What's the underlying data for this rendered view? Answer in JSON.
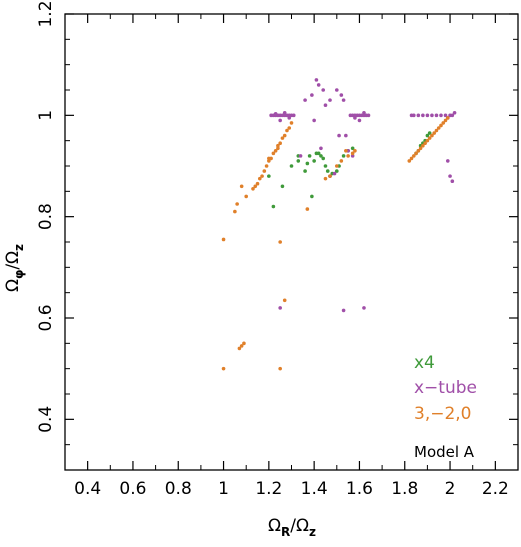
{
  "chart_data": {
    "type": "scatter",
    "xlabel": {
      "main": "Ω",
      "num_sub": "R",
      "slash": "/",
      "den_main": "Ω",
      "den_sub": "z"
    },
    "ylabel": {
      "main": "Ω",
      "num_sub": "φ",
      "slash": "/",
      "den_main": "Ω",
      "den_sub": "z"
    },
    "xlim": [
      0.3,
      2.3
    ],
    "ylim": [
      0.3,
      1.2
    ],
    "xticks": [
      0.4,
      0.6,
      0.8,
      1.0,
      1.2,
      1.4,
      1.6,
      1.8,
      2.0,
      2.2
    ],
    "xtick_labels": [
      "0.4",
      "0.6",
      "0.8",
      "1",
      "1.2",
      "1.4",
      "1.6",
      "1.8",
      "2",
      "2.2"
    ],
    "yticks": [
      0.4,
      0.6,
      0.8,
      1.0,
      1.2
    ],
    "ytick_labels": [
      "0.4",
      "0.6",
      "0.8",
      "1",
      "1.2"
    ],
    "grid": false,
    "legend_position": "bottom-right",
    "annotation": "Model A",
    "series": [
      {
        "name": "x4",
        "color": "#3f9a3a",
        "points": [
          [
            1.2,
            0.88
          ],
          [
            1.22,
            0.82
          ],
          [
            1.26,
            0.86
          ],
          [
            1.3,
            0.9
          ],
          [
            1.33,
            0.92
          ],
          [
            1.36,
            0.89
          ],
          [
            1.38,
            0.92
          ],
          [
            1.4,
            0.91
          ],
          [
            1.41,
            0.925
          ],
          [
            1.42,
            0.925
          ],
          [
            1.43,
            0.92
          ],
          [
            1.44,
            0.915
          ],
          [
            1.45,
            0.9
          ],
          [
            1.46,
            0.89
          ],
          [
            1.47,
            0.88
          ],
          [
            1.48,
            0.885
          ],
          [
            1.39,
            0.84
          ],
          [
            1.51,
            0.9
          ],
          [
            1.53,
            0.92
          ],
          [
            1.55,
            0.93
          ],
          [
            1.57,
            0.935
          ],
          [
            1.33,
            0.91
          ],
          [
            1.5,
            0.89
          ],
          [
            1.37,
            0.905
          ],
          [
            1.85,
            0.925
          ],
          [
            1.86,
            0.93
          ],
          [
            1.87,
            0.94
          ],
          [
            1.88,
            0.945
          ],
          [
            1.89,
            0.95
          ],
          [
            1.9,
            0.96
          ],
          [
            1.91,
            0.965
          ]
        ]
      },
      {
        "name": "x-tube",
        "color": "#a04fa8",
        "points": [
          [
            1.21,
            1.0
          ],
          [
            1.22,
            1.0
          ],
          [
            1.23,
            1.0
          ],
          [
            1.24,
            1.0
          ],
          [
            1.25,
            1.0
          ],
          [
            1.26,
            1.0
          ],
          [
            1.27,
            1.0
          ],
          [
            1.28,
            1.0
          ],
          [
            1.29,
            1.0
          ],
          [
            1.3,
            1.0
          ],
          [
            1.31,
            1.0
          ],
          [
            1.25,
            0.99
          ],
          [
            1.27,
            1.005
          ],
          [
            1.29,
            0.995
          ],
          [
            1.23,
            1.003
          ],
          [
            1.41,
            1.07
          ],
          [
            1.42,
            1.06
          ],
          [
            1.39,
            1.04
          ],
          [
            1.44,
            1.05
          ],
          [
            1.47,
            1.03
          ],
          [
            1.5,
            1.05
          ],
          [
            1.52,
            1.04
          ],
          [
            1.53,
            1.03
          ],
          [
            1.36,
            1.03
          ],
          [
            1.45,
            1.02
          ],
          [
            1.43,
            0.935
          ],
          [
            1.55,
            0.93
          ],
          [
            1.57,
            0.92
          ],
          [
            1.49,
            0.885
          ],
          [
            1.51,
            0.96
          ],
          [
            1.54,
            0.96
          ],
          [
            1.4,
            0.99
          ],
          [
            1.34,
            0.92
          ],
          [
            1.47,
            0.88
          ],
          [
            1.56,
            1.0
          ],
          [
            1.57,
            1.0
          ],
          [
            1.58,
            1.0
          ],
          [
            1.59,
            1.0
          ],
          [
            1.6,
            1.0
          ],
          [
            1.61,
            1.0
          ],
          [
            1.62,
            1.0
          ],
          [
            1.63,
            1.0
          ],
          [
            1.64,
            1.0
          ],
          [
            1.6,
            0.99
          ],
          [
            1.62,
            1.005
          ],
          [
            1.58,
            0.995
          ],
          [
            1.83,
            1.0
          ],
          [
            1.84,
            1.0
          ],
          [
            1.86,
            1.0
          ],
          [
            1.88,
            1.0
          ],
          [
            1.9,
            1.0
          ],
          [
            1.92,
            1.0
          ],
          [
            1.94,
            1.0
          ],
          [
            1.96,
            1.0
          ],
          [
            1.98,
            1.0
          ],
          [
            2.0,
            1.0
          ],
          [
            2.01,
            1.0
          ],
          [
            2.02,
            1.005
          ],
          [
            1.99,
            0.995
          ],
          [
            2.0,
            0.88
          ],
          [
            2.01,
            0.87
          ],
          [
            1.99,
            0.91
          ],
          [
            1.25,
            0.62
          ],
          [
            1.53,
            0.615
          ],
          [
            1.62,
            0.62
          ]
        ]
      },
      {
        "name": "3,-2,0",
        "color": "#e0802a",
        "points": [
          [
            1.0,
            0.5
          ],
          [
            1.0,
            0.755
          ],
          [
            1.07,
            0.54
          ],
          [
            1.08,
            0.545
          ],
          [
            1.09,
            0.55
          ],
          [
            1.05,
            0.81
          ],
          [
            1.06,
            0.825
          ],
          [
            1.08,
            0.86
          ],
          [
            1.1,
            0.84
          ],
          [
            1.13,
            0.855
          ],
          [
            1.14,
            0.86
          ],
          [
            1.15,
            0.865
          ],
          [
            1.16,
            0.875
          ],
          [
            1.17,
            0.88
          ],
          [
            1.18,
            0.89
          ],
          [
            1.19,
            0.9
          ],
          [
            1.2,
            0.91
          ],
          [
            1.21,
            0.915
          ],
          [
            1.22,
            0.925
          ],
          [
            1.23,
            0.93
          ],
          [
            1.24,
            0.94
          ],
          [
            1.25,
            0.945
          ],
          [
            1.26,
            0.955
          ],
          [
            1.27,
            0.96
          ],
          [
            1.28,
            0.97
          ],
          [
            1.29,
            0.975
          ],
          [
            1.3,
            0.985
          ],
          [
            1.25,
            0.75
          ],
          [
            1.25,
            0.5
          ],
          [
            1.27,
            0.635
          ],
          [
            1.37,
            0.815
          ],
          [
            1.45,
            0.875
          ],
          [
            1.47,
            0.88
          ],
          [
            1.5,
            0.9
          ],
          [
            1.52,
            0.91
          ],
          [
            1.54,
            0.93
          ],
          [
            1.55,
            0.92
          ],
          [
            1.57,
            0.925
          ],
          [
            1.58,
            0.93
          ],
          [
            1.82,
            0.91
          ],
          [
            1.83,
            0.915
          ],
          [
            1.84,
            0.92
          ],
          [
            1.85,
            0.925
          ],
          [
            1.86,
            0.93
          ],
          [
            1.87,
            0.935
          ],
          [
            1.88,
            0.94
          ],
          [
            1.89,
            0.945
          ],
          [
            1.9,
            0.95
          ],
          [
            1.91,
            0.955
          ],
          [
            1.92,
            0.96
          ],
          [
            1.93,
            0.965
          ],
          [
            1.94,
            0.97
          ],
          [
            1.95,
            0.975
          ],
          [
            1.96,
            0.98
          ],
          [
            1.97,
            0.985
          ],
          [
            1.98,
            0.99
          ],
          [
            1.99,
            0.995
          ],
          [
            1.2,
            0.915
          ],
          [
            1.24,
            0.935
          ]
        ]
      }
    ]
  }
}
